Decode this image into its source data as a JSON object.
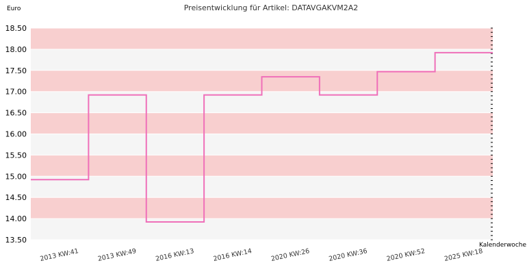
{
  "chart_data": {
    "type": "line",
    "step": true,
    "title": "Preisentwicklung für Artikel: DATAVGAKVM2A2",
    "ylabel": "Euro",
    "xlabel": "Kalenderwoche",
    "ylim": [
      13.5,
      18.5
    ],
    "y_ticks": [
      "13.50",
      "14.00",
      "14.50",
      "15.00",
      "15.50",
      "16.00",
      "16.50",
      "17.00",
      "17.50",
      "18.00",
      "18.50"
    ],
    "categories": [
      "2013 KW:41",
      "2013 KW:49",
      "2016 KW:13",
      "2016 KW:14",
      "2020 KW:26",
      "2020 KW:36",
      "2020 KW:52",
      "2025 KW:18"
    ],
    "series": [
      {
        "values": [
          14.92,
          16.92,
          13.92,
          16.92,
          17.35,
          16.92,
          17.47,
          17.92
        ]
      }
    ],
    "grid": true,
    "colors": {
      "band_pink": "#f8cfcf",
      "band_light": "#f5f5f5",
      "line": "#ef6fb9"
    }
  }
}
